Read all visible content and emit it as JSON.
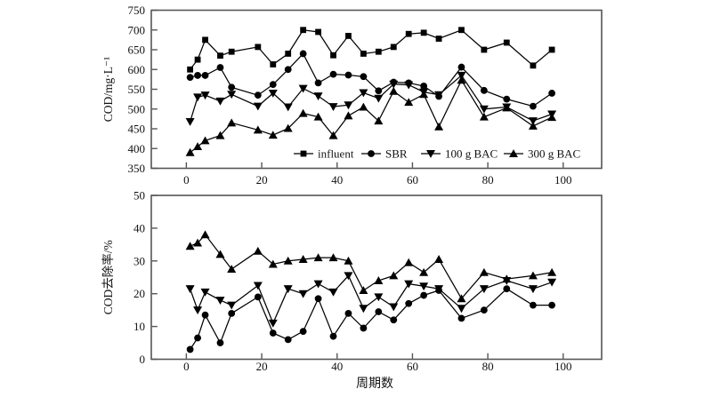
{
  "figure": {
    "description": "Two stacked line charts: COD concentration and COD removal rate versus operating cycle",
    "background": "#ffffff"
  },
  "colors": {
    "data": "#000000",
    "frame": "#555555",
    "text": "#111111"
  },
  "chart_data": [
    {
      "type": "line",
      "panel": "top",
      "title": "",
      "xlabel": "",
      "ylabel": "COD/mg·L⁻¹",
      "ylim": [
        350,
        750
      ],
      "yticks": [
        350,
        400,
        450,
        500,
        550,
        600,
        650,
        700,
        750
      ],
      "xlim": [
        -9.3,
        110.2
      ],
      "xticks": [
        0,
        20,
        40,
        60,
        80,
        100
      ],
      "grid": false,
      "x": [
        1,
        3,
        5,
        9,
        12,
        19,
        23,
        27,
        31,
        35,
        39,
        43,
        47,
        51,
        55,
        59,
        63,
        67,
        73,
        79,
        85,
        92,
        97
      ],
      "series": [
        {
          "name": "influent",
          "marker": "square",
          "values": [
            600,
            625,
            675,
            635,
            645,
            657,
            613,
            640,
            700,
            695,
            636,
            685,
            640,
            645,
            657,
            690,
            693,
            678,
            700,
            650,
            668,
            610,
            650
          ]
        },
        {
          "name": "SBR",
          "marker": "circle",
          "values": [
            580,
            585,
            585,
            605,
            555,
            535,
            562,
            600,
            640,
            566,
            588,
            586,
            582,
            546,
            568,
            566,
            558,
            532,
            606,
            547,
            525,
            507,
            540
          ]
        },
        {
          "name": "100 g BAC",
          "marker": "triangle-down",
          "values": [
            468,
            530,
            535,
            520,
            537,
            507,
            540,
            505,
            552,
            533,
            506,
            510,
            541,
            527,
            563,
            561,
            543,
            536,
            585,
            500,
            505,
            470,
            487
          ]
        },
        {
          "name": "300 g BAC",
          "marker": "triangle-up",
          "values": [
            390,
            405,
            420,
            433,
            465,
            447,
            434,
            451,
            489,
            480,
            433,
            483,
            505,
            470,
            545,
            517,
            537,
            455,
            573,
            480,
            503,
            457,
            479
          ]
        }
      ],
      "legend": {
        "visible": true,
        "position": "inside-bottom",
        "items": [
          "influent",
          "SBR",
          "100 g BAC",
          "300 g BAC"
        ]
      }
    },
    {
      "type": "line",
      "panel": "bottom",
      "title": "",
      "xlabel": "周期数",
      "ylabel": "COD去除率/%",
      "ylim": [
        0,
        50
      ],
      "yticks": [
        0,
        10,
        20,
        30,
        40,
        50
      ],
      "xlim": [
        -9.3,
        110.2
      ],
      "xticks": [
        0,
        20,
        40,
        60,
        80,
        100
      ],
      "grid": false,
      "x": [
        1,
        3,
        5,
        9,
        12,
        19,
        23,
        27,
        31,
        35,
        39,
        43,
        47,
        51,
        55,
        59,
        63,
        67,
        73,
        79,
        85,
        92,
        97
      ],
      "series": [
        {
          "name": "SBR",
          "marker": "circle",
          "values": [
            3,
            6.5,
            13.5,
            5,
            14,
            19,
            8,
            6,
            8.5,
            18.5,
            7,
            14,
            9.5,
            14.5,
            12,
            17,
            19.5,
            21,
            12.5,
            15,
            21.5,
            16.5,
            16.5
          ]
        },
        {
          "name": "100 g BAC",
          "marker": "triangle-down",
          "values": [
            21.5,
            15,
            20.5,
            18,
            16.5,
            22.5,
            11,
            21.5,
            20,
            23,
            20.5,
            25.5,
            15.5,
            19,
            16,
            23,
            22.3,
            21.5,
            15.5,
            21.5,
            24,
            21.5,
            23.5
          ]
        },
        {
          "name": "300 g BAC",
          "marker": "triangle-up",
          "values": [
            34.5,
            35.5,
            38,
            32,
            27.5,
            33,
            29,
            30,
            30.5,
            31,
            31,
            30,
            21,
            24,
            25.5,
            29.5,
            26.5,
            30.5,
            18.5,
            26.5,
            24.5,
            25.5,
            26.5
          ]
        }
      ],
      "legend": {
        "visible": false,
        "items": []
      }
    }
  ]
}
